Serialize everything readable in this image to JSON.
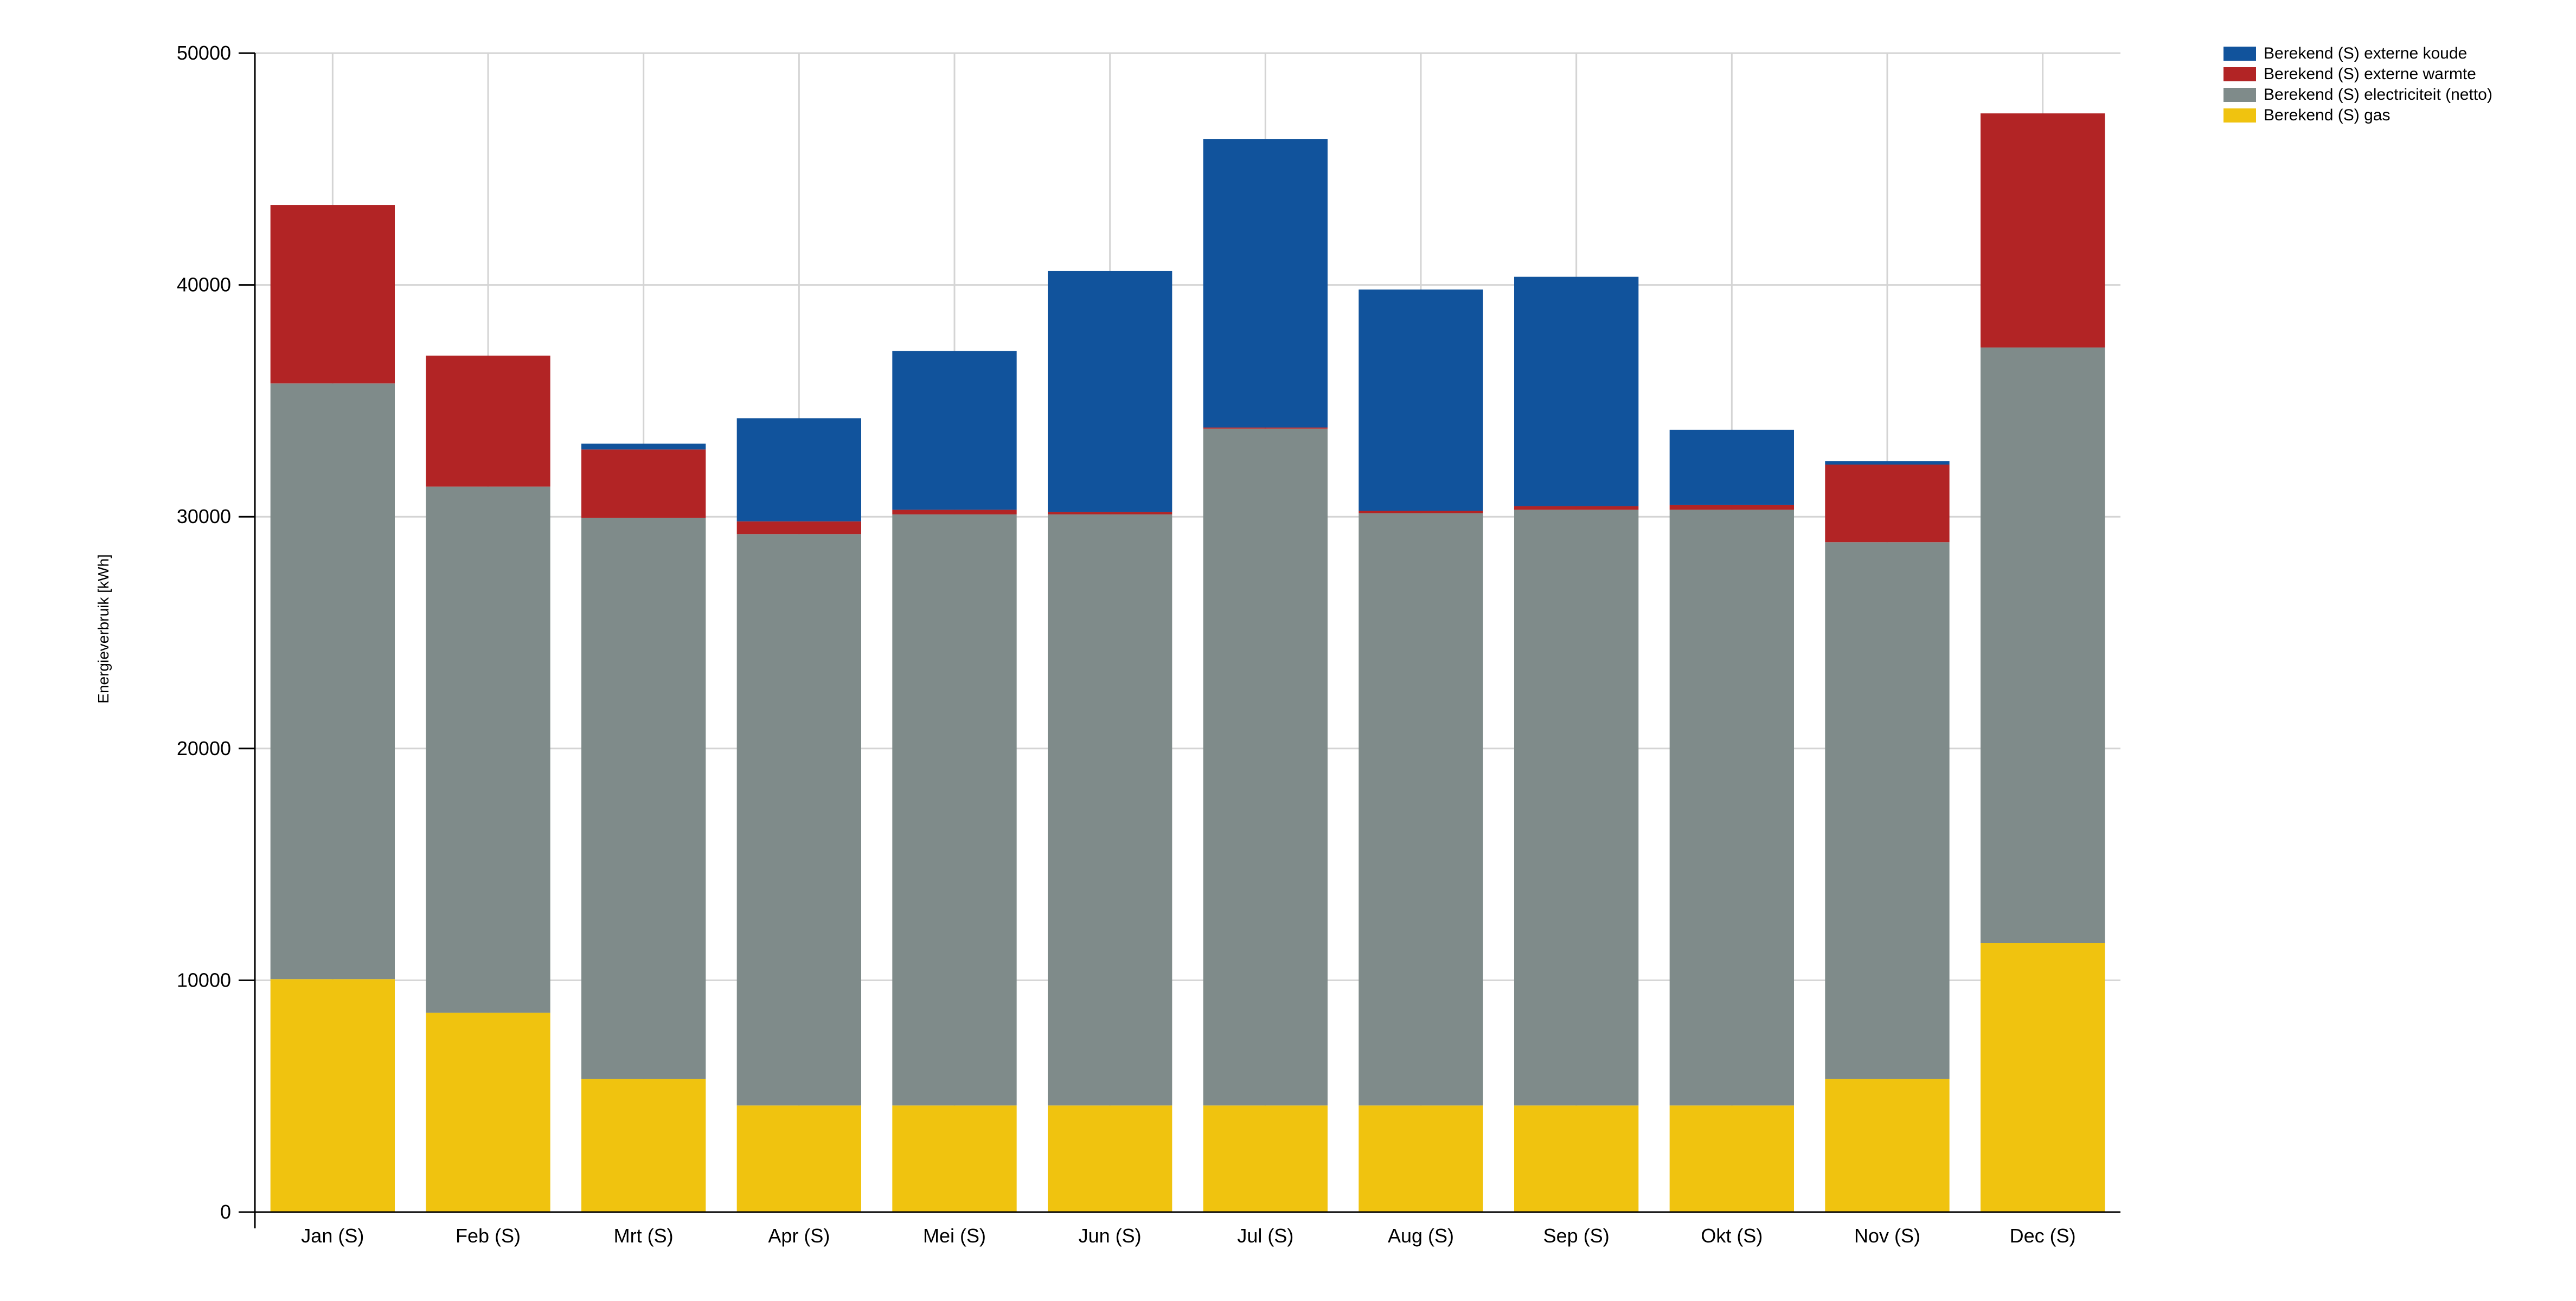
{
  "chart_data": {
    "type": "bar",
    "stacked": true,
    "ylabel": "Energieverbruik [kWh]",
    "xlabel": "",
    "ylim": [
      0,
      50000
    ],
    "yticks": [
      0,
      10000,
      20000,
      30000,
      40000,
      50000
    ],
    "grid": true,
    "legend_position": "top-right",
    "categories": [
      "Jan (S)",
      "Feb (S)",
      "Mrt (S)",
      "Apr (S)",
      "Mei (S)",
      "Jun (S)",
      "Jul (S)",
      "Aug (S)",
      "Sep (S)",
      "Okt (S)",
      "Nov (S)",
      "Dec (S)"
    ],
    "series": [
      {
        "name": "Berekend (S) gas",
        "color": "#f0c30f",
        "values": [
          10050,
          8600,
          5750,
          4600,
          4600,
          4600,
          4600,
          4600,
          4600,
          4600,
          5750,
          11600
        ]
      },
      {
        "name": "Berekend (S) electriciteit (netto)",
        "color": "#7f8b8a",
        "values": [
          25700,
          22700,
          24200,
          24650,
          25500,
          25500,
          29200,
          25550,
          25700,
          25700,
          23150,
          25700
        ]
      },
      {
        "name": "Berekend (S) externe warmte",
        "color": "#b22425",
        "values": [
          7700,
          5650,
          2950,
          550,
          200,
          100,
          50,
          100,
          150,
          200,
          3350,
          10100
        ]
      },
      {
        "name": "Berekend (S) externe koude",
        "color": "#11539c",
        "values": [
          0,
          0,
          250,
          4450,
          6850,
          10400,
          12450,
          9550,
          9900,
          3250,
          150,
          0
        ]
      }
    ]
  },
  "legend": {
    "items": [
      {
        "label": "Berekend (S) externe koude",
        "color": "#11539c"
      },
      {
        "label": "Berekend (S) externe warmte",
        "color": "#b22425"
      },
      {
        "label": "Berekend (S) electriciteit (netto)",
        "color": "#7f8b8a"
      },
      {
        "label": "Berekend (S) gas",
        "color": "#f0c30f"
      }
    ]
  }
}
